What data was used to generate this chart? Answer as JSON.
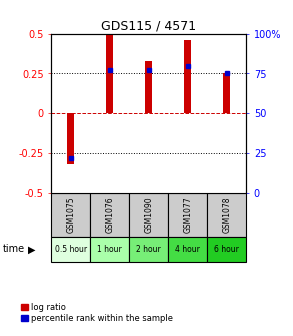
{
  "title": "GDS115 / 4571",
  "samples": [
    "GSM1075",
    "GSM1076",
    "GSM1090",
    "GSM1077",
    "GSM1078"
  ],
  "time_labels": [
    "0.5 hour",
    "1 hour",
    "2 hour",
    "4 hour",
    "6 hour"
  ],
  "time_colors": [
    "#dfffdf",
    "#aaffaa",
    "#77ee77",
    "#44dd44",
    "#22cc22"
  ],
  "log_ratios": [
    -0.32,
    0.5,
    0.33,
    0.46,
    0.25
  ],
  "percentile_ranks": [
    22,
    77,
    77,
    80,
    75
  ],
  "bar_color": "#cc0000",
  "pct_color": "#0000cc",
  "ylim": [
    -0.5,
    0.5
  ],
  "pct_ylim": [
    0,
    100
  ],
  "yticks_left": [
    -0.5,
    -0.25,
    0,
    0.25,
    0.5
  ],
  "yticks_right": [
    0,
    25,
    50,
    75,
    100
  ],
  "sample_bg": "#cccccc",
  "bar_width": 0.18
}
